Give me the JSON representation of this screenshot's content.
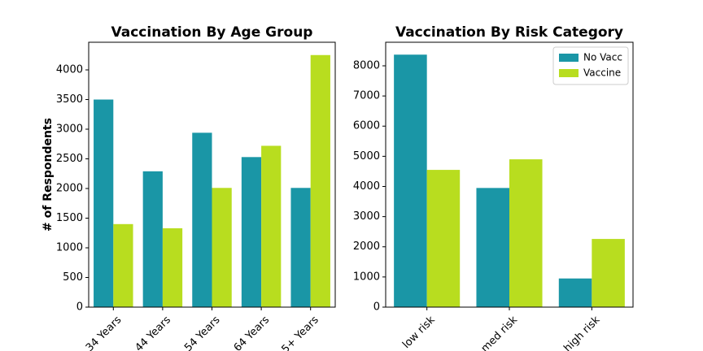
{
  "chart_data": [
    {
      "type": "bar",
      "title": "Vaccination By Age Group",
      "y_label": "# of Respondents",
      "categories": [
        "34 Years",
        "44 Years",
        "54 Years",
        "64 Years",
        "5+ Years"
      ],
      "series": [
        {
          "name": "No Vacc",
          "color": "#1a96a6",
          "values": [
            3500,
            2290,
            2940,
            2530,
            2010
          ]
        },
        {
          "name": "Vaccine",
          "color": "#b8dd1f",
          "values": [
            1400,
            1330,
            2010,
            2720,
            4250
          ]
        }
      ],
      "ylim": [
        0,
        4466
      ],
      "yticks": [
        0,
        500,
        1000,
        1500,
        2000,
        2500,
        3000,
        3500,
        4000
      ],
      "legend": false
    },
    {
      "type": "bar",
      "title": "Vaccination By Risk Category",
      "categories": [
        "low risk",
        "med risk",
        "high risk"
      ],
      "series": [
        {
          "name": "No Vacc",
          "color": "#1a96a6",
          "values": [
            8370,
            3950,
            950
          ]
        },
        {
          "name": "Vaccine",
          "color": "#b8dd1f",
          "values": [
            4550,
            4900,
            2260
          ]
        }
      ],
      "ylim": [
        0,
        8781
      ],
      "yticks": [
        0,
        1000,
        2000,
        3000,
        4000,
        5000,
        6000,
        7000,
        8000
      ],
      "legend": "upper right"
    }
  ]
}
